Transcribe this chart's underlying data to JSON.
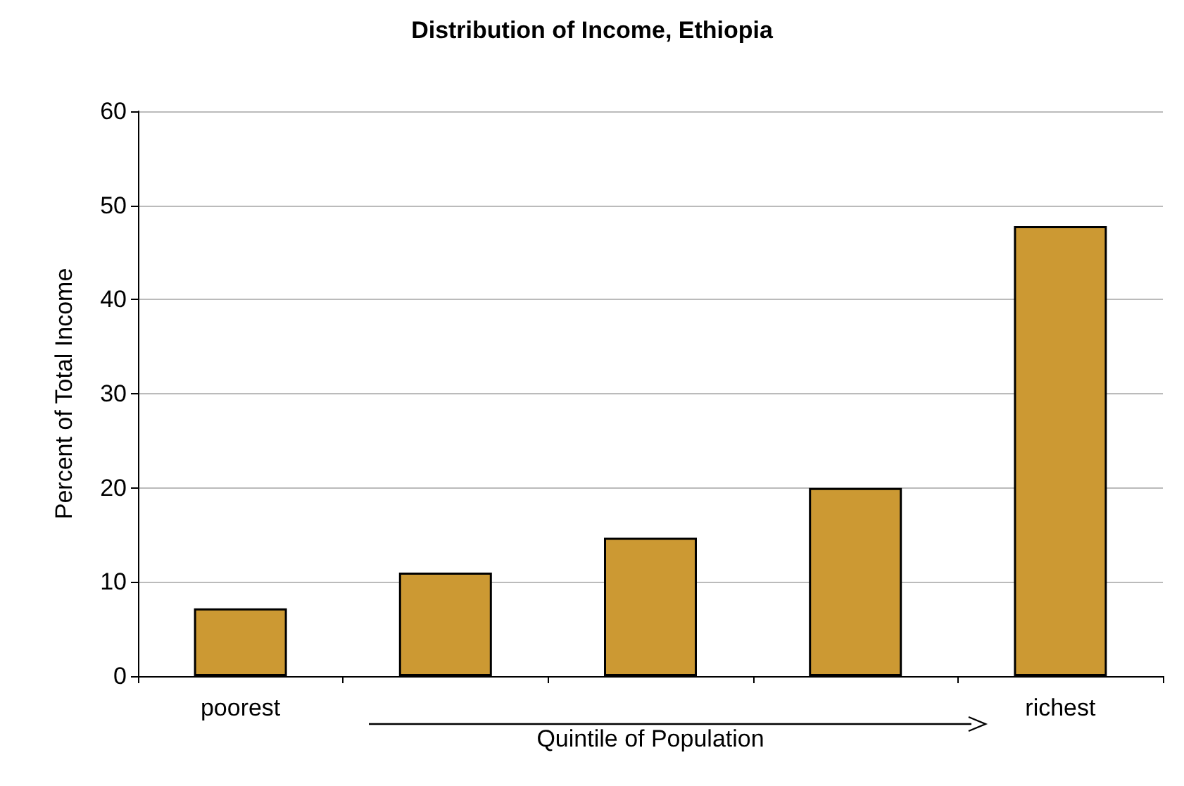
{
  "chart_data": {
    "type": "bar",
    "title": "Distribution of Income, Ethiopia",
    "xlabel": "Quintile of Population",
    "ylabel": "Percent of Total Income",
    "categories": [
      "poorest",
      null,
      null,
      null,
      "richest"
    ],
    "values": [
      7.2,
      11.0,
      14.7,
      20.0,
      47.8
    ],
    "color": "#cc9933",
    "ylim": [
      0,
      60
    ],
    "yticks": [
      0,
      10,
      20,
      30,
      40,
      50,
      60
    ],
    "grid": "y"
  }
}
